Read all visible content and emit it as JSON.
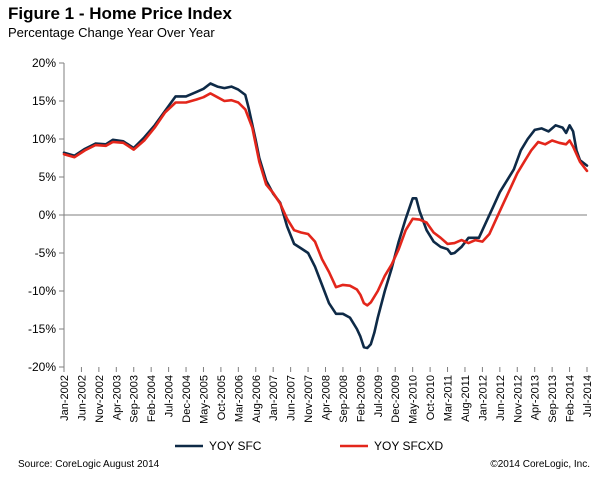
{
  "header": {
    "title": "Figure 1 - Home Price Index",
    "subtitle": "Percentage Change Year Over Year"
  },
  "footer": {
    "source": "Source: CoreLogic  August 2014",
    "copyright": "©2014 CoreLogic, Inc."
  },
  "colors": {
    "sfc": "#0e2a47",
    "sfcxd": "#e3261b",
    "axis": "#7f7f7f"
  },
  "chart_data": {
    "type": "line",
    "title": "Figure 1 - Home Price Index",
    "subtitle": "Percentage Change Year Over Year",
    "xlabel": "",
    "ylabel": "",
    "ylim": [
      -20,
      20
    ],
    "yticks": [
      -20,
      -15,
      -10,
      -5,
      0,
      5,
      10,
      15,
      20
    ],
    "ytick_labels": [
      "-20%",
      "-15%",
      "-10%",
      "-5%",
      "0%",
      "5%",
      "10%",
      "15%",
      "20%"
    ],
    "x_start": "Jan-2002",
    "x_end": "Jul-2014",
    "num_months": 151,
    "xtick_labels": [
      "Jan-2002",
      "Jun-2002",
      "Nov-2002",
      "Apr-2003",
      "Sep-2003",
      "Feb-2004",
      "Jul-2004",
      "Dec-2004",
      "May-2005",
      "Oct-2005",
      "Mar-2006",
      "Aug-2006",
      "Jan-2007",
      "Jun-2007",
      "Nov-2007",
      "Apr-2008",
      "Sep-2008",
      "Feb-2009",
      "Jul-2009",
      "Dec-2009",
      "May-2010",
      "Oct-2010",
      "Mar-2011",
      "Aug-2011",
      "Jan-2012",
      "Jun-2012",
      "Nov-2012",
      "Apr-2013",
      "Sep-2013",
      "Feb-2014",
      "Jul-2014"
    ],
    "legend_position": "bottom",
    "series": [
      {
        "name": "YOY SFC",
        "points": [
          [
            0,
            8.2
          ],
          [
            3,
            7.8
          ],
          [
            6,
            8.7
          ],
          [
            9,
            9.4
          ],
          [
            12,
            9.3
          ],
          [
            14,
            9.9
          ],
          [
            17,
            9.7
          ],
          [
            20,
            8.8
          ],
          [
            23,
            10.2
          ],
          [
            26,
            11.8
          ],
          [
            29,
            13.7
          ],
          [
            32,
            15.6
          ],
          [
            35,
            15.6
          ],
          [
            38,
            16.2
          ],
          [
            40,
            16.6
          ],
          [
            42,
            17.3
          ],
          [
            44,
            16.9
          ],
          [
            46,
            16.7
          ],
          [
            48,
            16.9
          ],
          [
            50,
            16.5
          ],
          [
            52,
            15.8
          ],
          [
            53,
            14.0
          ],
          [
            55,
            9.8
          ],
          [
            56,
            7.5
          ],
          [
            58,
            4.5
          ],
          [
            60,
            2.8
          ],
          [
            62,
            1.6
          ],
          [
            64,
            -1.5
          ],
          [
            66,
            -3.8
          ],
          [
            68,
            -4.4
          ],
          [
            70,
            -5.0
          ],
          [
            72,
            -6.8
          ],
          [
            74,
            -9.2
          ],
          [
            76,
            -11.6
          ],
          [
            78,
            -13.0
          ],
          [
            80,
            -13.0
          ],
          [
            82,
            -13.5
          ],
          [
            84,
            -15.0
          ],
          [
            85,
            -16.0
          ],
          [
            86,
            -17.4
          ],
          [
            87,
            -17.5
          ],
          [
            88,
            -17.0
          ],
          [
            89,
            -15.5
          ],
          [
            90,
            -13.5
          ],
          [
            92,
            -10.0
          ],
          [
            94,
            -7.0
          ],
          [
            96,
            -3.5
          ],
          [
            98,
            -0.5
          ],
          [
            100,
            2.2
          ],
          [
            101,
            2.2
          ],
          [
            102,
            0.5
          ],
          [
            104,
            -2.0
          ],
          [
            106,
            -3.5
          ],
          [
            108,
            -4.2
          ],
          [
            110,
            -4.5
          ],
          [
            111,
            -5.1
          ],
          [
            112,
            -5.0
          ],
          [
            114,
            -4.2
          ],
          [
            116,
            -3.0
          ],
          [
            117,
            -3.0
          ],
          [
            119,
            -3.0
          ],
          [
            121,
            -1.0
          ],
          [
            123,
            1.0
          ],
          [
            125,
            3.0
          ],
          [
            127,
            4.5
          ],
          [
            129,
            6.0
          ],
          [
            131,
            8.5
          ],
          [
            133,
            10.0
          ],
          [
            135,
            11.2
          ],
          [
            137,
            11.4
          ],
          [
            139,
            11.0
          ],
          [
            141,
            11.8
          ],
          [
            143,
            11.5
          ],
          [
            144,
            10.8
          ],
          [
            145,
            11.8
          ],
          [
            146,
            11.0
          ],
          [
            147,
            8.5
          ],
          [
            148,
            7.2
          ],
          [
            150,
            6.5
          ]
        ]
      },
      {
        "name": "YOY SFCXD",
        "points": [
          [
            0,
            8.0
          ],
          [
            3,
            7.6
          ],
          [
            6,
            8.5
          ],
          [
            9,
            9.2
          ],
          [
            12,
            9.1
          ],
          [
            14,
            9.6
          ],
          [
            17,
            9.5
          ],
          [
            20,
            8.6
          ],
          [
            23,
            9.8
          ],
          [
            26,
            11.5
          ],
          [
            29,
            13.5
          ],
          [
            32,
            14.8
          ],
          [
            35,
            14.8
          ],
          [
            38,
            15.2
          ],
          [
            40,
            15.5
          ],
          [
            42,
            16.0
          ],
          [
            44,
            15.5
          ],
          [
            46,
            15.0
          ],
          [
            48,
            15.1
          ],
          [
            50,
            14.8
          ],
          [
            52,
            13.9
          ],
          [
            54,
            11.5
          ],
          [
            56,
            7.0
          ],
          [
            58,
            4.0
          ],
          [
            60,
            2.9
          ],
          [
            62,
            1.5
          ],
          [
            64,
            -0.5
          ],
          [
            66,
            -2.0
          ],
          [
            68,
            -2.3
          ],
          [
            70,
            -2.5
          ],
          [
            72,
            -3.5
          ],
          [
            74,
            -5.8
          ],
          [
            76,
            -7.5
          ],
          [
            78,
            -9.5
          ],
          [
            80,
            -9.2
          ],
          [
            82,
            -9.3
          ],
          [
            84,
            -9.8
          ],
          [
            85,
            -10.5
          ],
          [
            86,
            -11.6
          ],
          [
            87,
            -11.9
          ],
          [
            88,
            -11.5
          ],
          [
            90,
            -10.0
          ],
          [
            92,
            -8.0
          ],
          [
            94,
            -6.5
          ],
          [
            96,
            -4.5
          ],
          [
            98,
            -2.0
          ],
          [
            100,
            -0.5
          ],
          [
            102,
            -0.6
          ],
          [
            104,
            -1.0
          ],
          [
            106,
            -2.3
          ],
          [
            108,
            -3.0
          ],
          [
            110,
            -3.8
          ],
          [
            112,
            -3.7
          ],
          [
            114,
            -3.3
          ],
          [
            116,
            -3.7
          ],
          [
            118,
            -3.3
          ],
          [
            120,
            -3.5
          ],
          [
            122,
            -2.5
          ],
          [
            124,
            -0.5
          ],
          [
            126,
            1.5
          ],
          [
            128,
            3.5
          ],
          [
            130,
            5.5
          ],
          [
            132,
            7.0
          ],
          [
            134,
            8.5
          ],
          [
            136,
            9.6
          ],
          [
            138,
            9.3
          ],
          [
            140,
            9.8
          ],
          [
            142,
            9.5
          ],
          [
            144,
            9.3
          ],
          [
            145,
            9.8
          ],
          [
            146,
            9.0
          ],
          [
            148,
            7.0
          ],
          [
            150,
            5.8
          ]
        ]
      }
    ]
  }
}
